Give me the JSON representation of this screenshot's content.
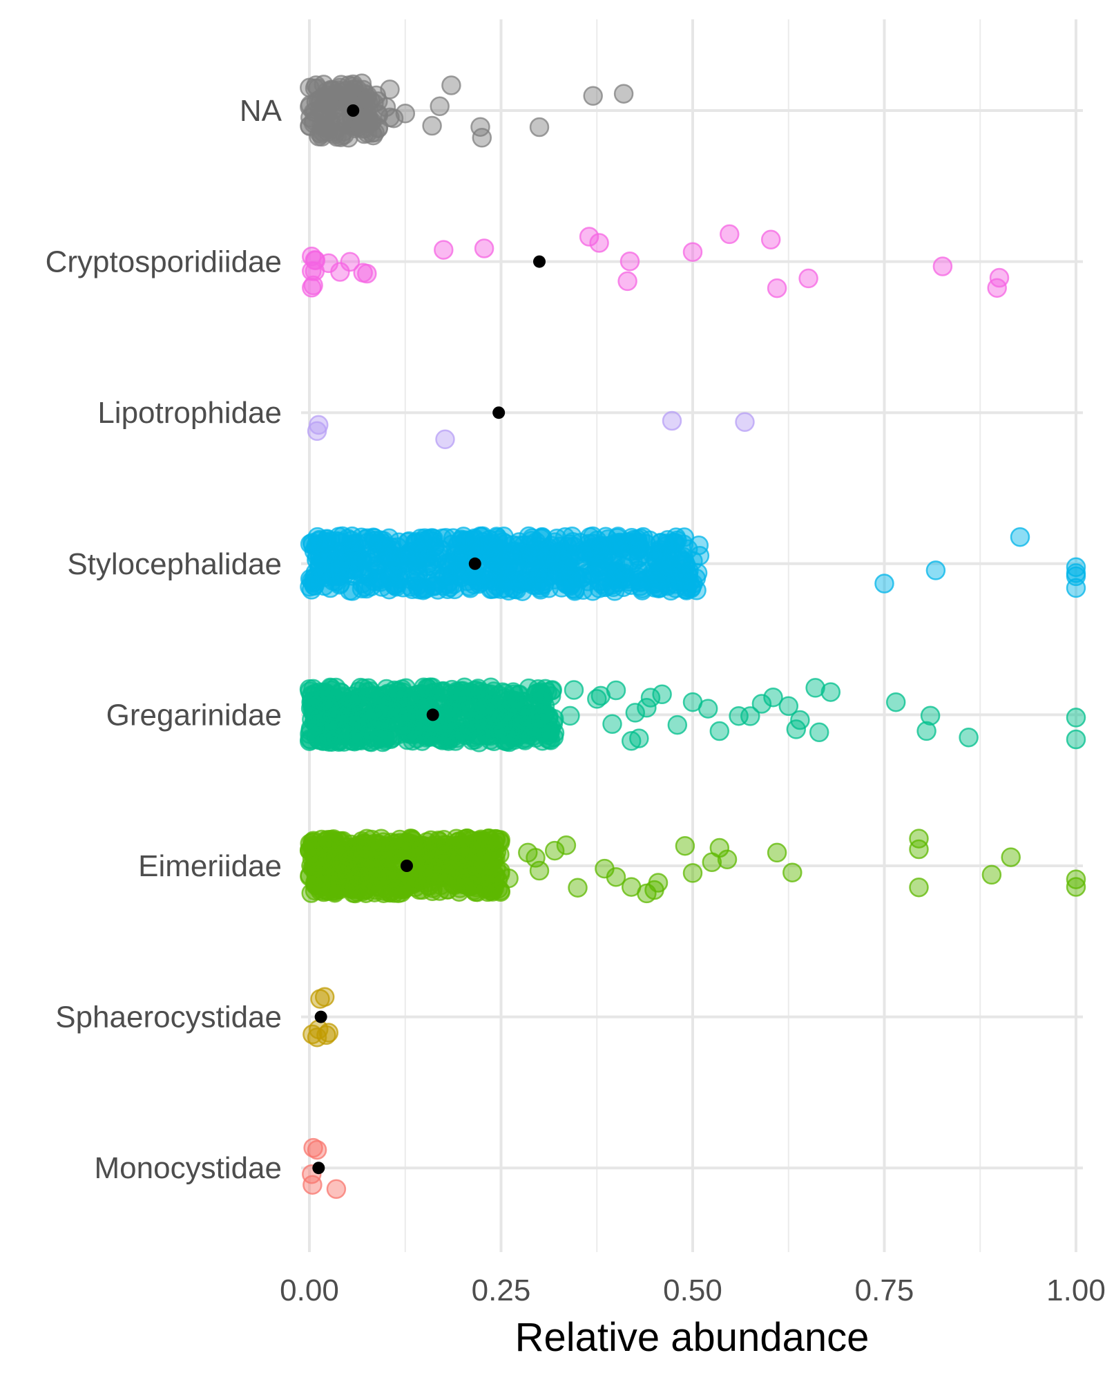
{
  "chart_data": {
    "type": "scatter",
    "subtype": "jittered strip plot with mean points",
    "xlabel": "Relative abundance",
    "ylabel": "",
    "xlim": [
      0,
      1
    ],
    "x_ticks": [
      "0.00",
      "0.25",
      "0.50",
      "0.75",
      "1.00"
    ],
    "grid": true,
    "legend": "none",
    "mean_marker_color": "#000000",
    "categories": [
      "NA",
      "Cryptosporidiidae",
      "Lipotrophidae",
      "Stylocephalidae",
      "Gregarinidae",
      "Eimeriidae",
      "Sphaerocystidae",
      "Monocystidae"
    ],
    "series": [
      {
        "category": "NA",
        "color": "#7f7f7f",
        "mean": 0.057,
        "outlying_points": [
          0.09,
          0.1,
          0.11,
          0.105,
          0.08,
          0.105,
          0.09,
          0.125,
          0.16,
          0.17,
          0.185,
          0.225,
          0.223,
          0.3,
          0.37,
          0.41
        ],
        "dense_range": [
          0.0,
          0.09
        ],
        "dense_count": 140
      },
      {
        "category": "Cryptosporidiidae",
        "color": "#f564e3",
        "mean": 0.3,
        "points": [
          0.003,
          0.005,
          0.003,
          0.007,
          0.003,
          0.007,
          0.008,
          0.04,
          0.025,
          0.053,
          0.07,
          0.075,
          0.175,
          0.228,
          0.365,
          0.378,
          0.415,
          0.418,
          0.5,
          0.548,
          0.602,
          0.61,
          0.651,
          0.826,
          0.897,
          0.9
        ]
      },
      {
        "category": "Lipotrophidae",
        "color": "#b79ff5",
        "mean": 0.247,
        "points": [
          0.012,
          0.01,
          0.177,
          0.473,
          0.568
        ]
      },
      {
        "category": "Stylocephalidae",
        "color": "#00b4e8",
        "mean": 0.216,
        "dense_range": [
          0.0,
          0.51
        ],
        "dense_count": 700,
        "outlying_points": [
          0.75,
          0.817,
          0.927,
          1.0,
          1.0,
          1.0,
          1.0
        ]
      },
      {
        "category": "Gregarinidae",
        "color": "#00bf8c",
        "mean": 0.161,
        "dense_range": [
          0.0,
          0.32
        ],
        "dense_count": 600,
        "outlying_points": [
          0.34,
          0.345,
          0.375,
          0.38,
          0.395,
          0.4,
          0.42,
          0.425,
          0.43,
          0.44,
          0.445,
          0.46,
          0.48,
          0.5,
          0.52,
          0.535,
          0.56,
          0.575,
          0.59,
          0.605,
          0.625,
          0.635,
          0.64,
          0.66,
          0.665,
          0.68,
          0.765,
          0.805,
          0.81,
          0.86,
          1.0,
          1.0
        ]
      },
      {
        "category": "Eimeriidae",
        "color": "#5db800",
        "mean": 0.127,
        "dense_range": [
          0.0,
          0.25
        ],
        "dense_count": 600,
        "outlying_points": [
          0.26,
          0.285,
          0.3,
          0.295,
          0.32,
          0.335,
          0.35,
          0.385,
          0.4,
          0.42,
          0.44,
          0.45,
          0.455,
          0.49,
          0.5,
          0.525,
          0.535,
          0.545,
          0.61,
          0.63,
          0.795,
          0.795,
          0.795,
          0.89,
          0.915,
          1.0,
          1.0
        ]
      },
      {
        "category": "Sphaerocystidae",
        "color": "#c09b00",
        "mean": 0.015,
        "points": [
          0.004,
          0.01,
          0.012,
          0.025,
          0.02,
          0.022,
          0.014
        ]
      },
      {
        "category": "Monocystidae",
        "color": "#f8766d",
        "mean": 0.012,
        "points": [
          0.004,
          0.003,
          0.01,
          0.005,
          0.035
        ]
      }
    ]
  }
}
